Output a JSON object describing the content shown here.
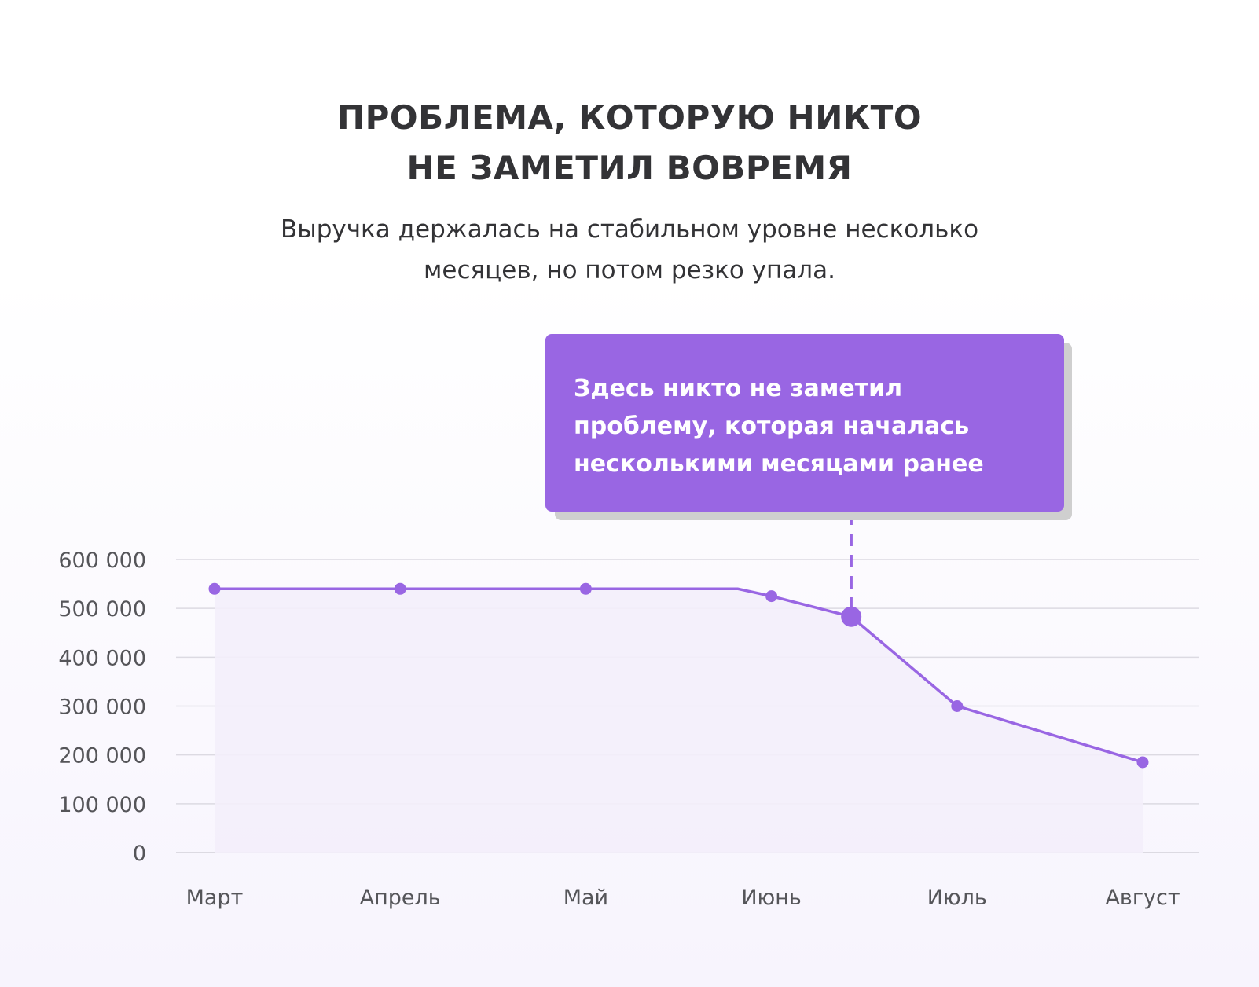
{
  "title_lines": [
    "ПРОБЛЕМА, КОТОРУЮ НИКТО",
    "НЕ ЗАМЕТИЛ ВОВРЕМЯ"
  ],
  "subtitle_lines": [
    "Выручка держалась на стабильном уровне несколько",
    "месяцев, но потом резко упала."
  ],
  "annotation": {
    "lines": [
      "Здесь никто не заметил",
      "проблему, которая началась",
      "несколькими месяцами ранее"
    ],
    "color": "#9966e3"
  },
  "colors": {
    "line": "#9966e3",
    "area": "#f3eefb",
    "grid": "#dcdae2",
    "text": "#333336"
  },
  "chart_data": {
    "type": "area",
    "categories": [
      "Март",
      "Апрель",
      "Май",
      "Июнь",
      "Июль",
      "Август"
    ],
    "yticks": [
      "600 000",
      "500 000",
      "400 000",
      "300 000",
      "200 000",
      "100 000",
      "0"
    ],
    "ylim": [
      0,
      600000
    ],
    "grid": true,
    "series": [
      {
        "points": [
          {
            "x": 0,
            "y": 540000,
            "marker": true
          },
          {
            "x": 1,
            "y": 540000,
            "marker": true
          },
          {
            "x": 2,
            "y": 540000,
            "marker": true
          },
          {
            "x": 2.82,
            "y": 540000,
            "marker": false
          },
          {
            "x": 3,
            "y": 525000,
            "marker": true
          },
          {
            "x": 3.43,
            "y": 483000,
            "marker": "highlight"
          },
          {
            "x": 4,
            "y": 300000,
            "marker": true
          },
          {
            "x": 5,
            "y": 185000,
            "marker": true
          }
        ]
      }
    ],
    "highlight_index": 5
  }
}
